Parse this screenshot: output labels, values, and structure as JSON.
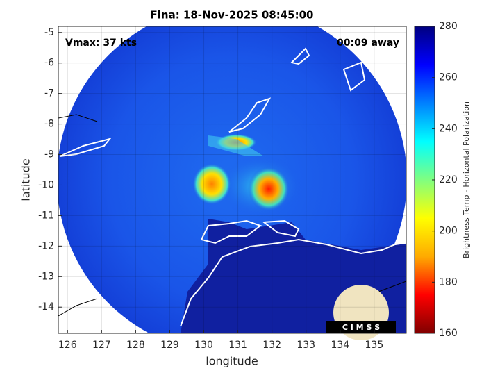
{
  "chart_data": {
    "type": "map",
    "title": "Fina: 18-Nov-2025 08:45:00",
    "xlabel": "longitude",
    "ylabel": "latitude",
    "xlim": [
      125.73,
      135.94
    ],
    "ylim": [
      -14.86,
      -4.8
    ],
    "xticks": [
      126,
      127,
      128,
      129,
      130,
      131,
      132,
      133,
      134,
      135
    ],
    "yticks": [
      -5,
      -6,
      -7,
      -8,
      -9,
      -10,
      -11,
      -12,
      -13,
      -14
    ],
    "grid": true,
    "annotations": [
      "Vmax: 37 kts",
      "00:09 away"
    ],
    "colorbar": {
      "label": "Brightness Temp - Horizontal Polarization",
      "clim": [
        160,
        280
      ],
      "ticks": [
        160,
        180,
        200,
        220,
        240,
        260,
        280
      ],
      "colormap": [
        "#800000",
        "#ff0000",
        "#ffaa00",
        "#ffff00",
        "#80ff80",
        "#00ffff",
        "#0080ff",
        "#0000ff",
        "#000080"
      ]
    },
    "logo": "C I M S S"
  }
}
